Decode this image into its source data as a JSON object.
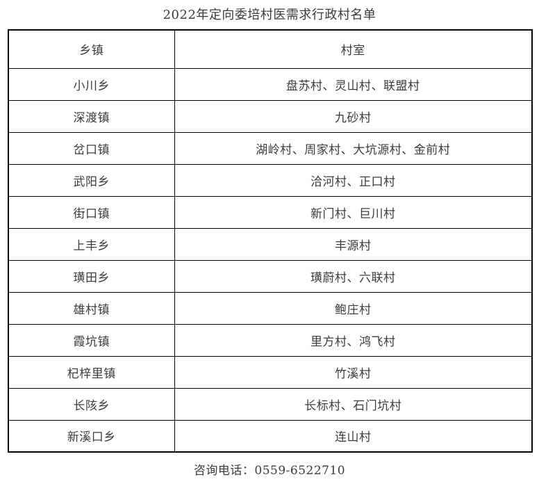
{
  "title": "2022年定向委培村医需求行政村名单",
  "table": {
    "headers": [
      "乡镇",
      "村室"
    ],
    "rows": [
      {
        "township": "小川乡",
        "villages": "盘苏村、灵山村、联盟村"
      },
      {
        "township": "深渡镇",
        "villages": "九砂村"
      },
      {
        "township": "岔口镇",
        "villages": "湖岭村、周家村、大坑源村、金前村"
      },
      {
        "township": "武阳乡",
        "villages": "洽河村、正口村"
      },
      {
        "township": "街口镇",
        "villages": "新门村、巨川村"
      },
      {
        "township": "上丰乡",
        "villages": "丰源村"
      },
      {
        "township": "璜田乡",
        "villages": "璜蔚村、六联村"
      },
      {
        "township": "雄村镇",
        "villages": "鲍庄村"
      },
      {
        "township": "霞坑镇",
        "villages": "里方村、鸿飞村"
      },
      {
        "township": "杞梓里镇",
        "villages": "竹溪村"
      },
      {
        "township": "长陔乡",
        "villages": "长标村、石门坑村"
      },
      {
        "township": "新溪口乡",
        "villages": "连山村"
      }
    ]
  },
  "footer": {
    "contact": "咨询电话：0559-6522710"
  },
  "colors": {
    "text": "#3b3b3b",
    "border": "#000000",
    "background": "#ffffff"
  }
}
